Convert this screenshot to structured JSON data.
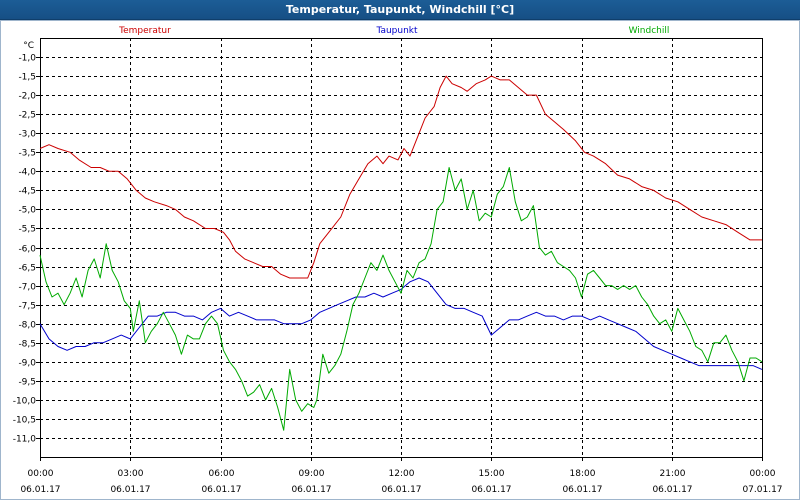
{
  "window": {
    "title": "Temperatur, Taupunkt, Windchill [°C]"
  },
  "chart_data": {
    "type": "line",
    "title": "Temperatur, Taupunkt, Windchill [°C]",
    "ylabel": "°C",
    "ylim": [
      -11.5,
      -0.5
    ],
    "xlim_hours": [
      0,
      24
    ],
    "y_ticks": [
      -1.0,
      -1.5,
      -2.0,
      -2.5,
      -3.0,
      -3.5,
      -4.0,
      -4.5,
      -5.0,
      -5.5,
      -6.0,
      -6.5,
      -7.0,
      -7.5,
      -8.0,
      -8.5,
      -9.0,
      -9.5,
      -10.0,
      -10.5,
      -11.0
    ],
    "y_tick_labels": [
      "-1,0",
      "-1,5",
      "-2,0",
      "-2,5",
      "-3,0",
      "-3,5",
      "-4,0",
      "-4,5",
      "-5,0",
      "-5,5",
      "-6,0",
      "-6,5",
      "-7,0",
      "-7,5",
      "-8,0",
      "-8,5",
      "-9,0",
      "-9,5",
      "-10,0",
      "-10,5",
      "-11,0"
    ],
    "x_ticks": [
      {
        "hour": 0,
        "time": "00:00",
        "date": "06.01.17"
      },
      {
        "hour": 3,
        "time": "03:00",
        "date": "06.01.17"
      },
      {
        "hour": 6,
        "time": "06:00",
        "date": "06.01.17"
      },
      {
        "hour": 9,
        "time": "09:00",
        "date": "06.01.17"
      },
      {
        "hour": 12,
        "time": "12:00",
        "date": "06.01.17"
      },
      {
        "hour": 15,
        "time": "15:00",
        "date": "06.01.17"
      },
      {
        "hour": 18,
        "time": "18:00",
        "date": "06.01.17"
      },
      {
        "hour": 21,
        "time": "21:00",
        "date": "06.01.17"
      },
      {
        "hour": 24,
        "time": "00:00",
        "date": "07.01.17"
      }
    ],
    "grid": true,
    "series": [
      {
        "name": "Temperatur",
        "color": "#cc0000",
        "legend_position": "top-left",
        "points": [
          [
            0.0,
            -3.4
          ],
          [
            0.3,
            -3.3
          ],
          [
            0.6,
            -3.4
          ],
          [
            1.0,
            -3.5
          ],
          [
            1.3,
            -3.7
          ],
          [
            1.7,
            -3.9
          ],
          [
            2.0,
            -3.9
          ],
          [
            2.3,
            -4.0
          ],
          [
            2.6,
            -4.0
          ],
          [
            2.9,
            -4.2
          ],
          [
            3.2,
            -4.5
          ],
          [
            3.5,
            -4.7
          ],
          [
            3.8,
            -4.8
          ],
          [
            4.2,
            -4.9
          ],
          [
            4.5,
            -5.0
          ],
          [
            4.8,
            -5.2
          ],
          [
            5.1,
            -5.3
          ],
          [
            5.5,
            -5.5
          ],
          [
            5.8,
            -5.5
          ],
          [
            6.1,
            -5.6
          ],
          [
            6.3,
            -5.8
          ],
          [
            6.5,
            -6.1
          ],
          [
            6.8,
            -6.3
          ],
          [
            7.1,
            -6.4
          ],
          [
            7.4,
            -6.5
          ],
          [
            7.7,
            -6.5
          ],
          [
            8.0,
            -6.7
          ],
          [
            8.3,
            -6.8
          ],
          [
            8.6,
            -6.8
          ],
          [
            8.9,
            -6.8
          ],
          [
            9.1,
            -6.4
          ],
          [
            9.3,
            -5.9
          ],
          [
            9.6,
            -5.6
          ],
          [
            10.0,
            -5.2
          ],
          [
            10.3,
            -4.6
          ],
          [
            10.6,
            -4.2
          ],
          [
            10.9,
            -3.8
          ],
          [
            11.2,
            -3.6
          ],
          [
            11.4,
            -3.8
          ],
          [
            11.6,
            -3.6
          ],
          [
            11.9,
            -3.7
          ],
          [
            12.1,
            -3.4
          ],
          [
            12.3,
            -3.6
          ],
          [
            12.6,
            -3.0
          ],
          [
            12.8,
            -2.6
          ],
          [
            13.1,
            -2.3
          ],
          [
            13.3,
            -1.8
          ],
          [
            13.5,
            -1.5
          ],
          [
            13.7,
            -1.7
          ],
          [
            14.0,
            -1.8
          ],
          [
            14.2,
            -1.9
          ],
          [
            14.5,
            -1.7
          ],
          [
            14.8,
            -1.6
          ],
          [
            15.0,
            -1.5
          ],
          [
            15.3,
            -1.6
          ],
          [
            15.6,
            -1.6
          ],
          [
            15.9,
            -1.8
          ],
          [
            16.2,
            -2.0
          ],
          [
            16.5,
            -2.0
          ],
          [
            16.8,
            -2.5
          ],
          [
            17.1,
            -2.7
          ],
          [
            17.4,
            -2.9
          ],
          [
            17.8,
            -3.2
          ],
          [
            18.1,
            -3.5
          ],
          [
            18.4,
            -3.6
          ],
          [
            18.8,
            -3.8
          ],
          [
            19.2,
            -4.1
          ],
          [
            19.6,
            -4.2
          ],
          [
            20.0,
            -4.4
          ],
          [
            20.4,
            -4.5
          ],
          [
            20.8,
            -4.7
          ],
          [
            21.2,
            -4.8
          ],
          [
            21.6,
            -5.0
          ],
          [
            22.0,
            -5.2
          ],
          [
            22.4,
            -5.3
          ],
          [
            22.8,
            -5.4
          ],
          [
            23.2,
            -5.6
          ],
          [
            23.6,
            -5.8
          ],
          [
            24.0,
            -5.8
          ]
        ]
      },
      {
        "name": "Taupunkt",
        "color": "#0000cc",
        "legend_position": "top-center",
        "points": [
          [
            0.0,
            -8.0
          ],
          [
            0.3,
            -8.4
          ],
          [
            0.6,
            -8.6
          ],
          [
            0.9,
            -8.7
          ],
          [
            1.2,
            -8.6
          ],
          [
            1.5,
            -8.6
          ],
          [
            1.8,
            -8.5
          ],
          [
            2.1,
            -8.5
          ],
          [
            2.4,
            -8.4
          ],
          [
            2.7,
            -8.3
          ],
          [
            3.0,
            -8.4
          ],
          [
            3.3,
            -8.1
          ],
          [
            3.6,
            -7.8
          ],
          [
            3.9,
            -7.8
          ],
          [
            4.2,
            -7.7
          ],
          [
            4.5,
            -7.7
          ],
          [
            4.8,
            -7.8
          ],
          [
            5.1,
            -7.8
          ],
          [
            5.4,
            -7.9
          ],
          [
            5.7,
            -7.7
          ],
          [
            6.0,
            -7.6
          ],
          [
            6.3,
            -7.8
          ],
          [
            6.6,
            -7.7
          ],
          [
            6.9,
            -7.8
          ],
          [
            7.2,
            -7.9
          ],
          [
            7.5,
            -7.9
          ],
          [
            7.8,
            -7.9
          ],
          [
            8.1,
            -8.0
          ],
          [
            8.4,
            -8.0
          ],
          [
            8.7,
            -8.0
          ],
          [
            9.0,
            -7.9
          ],
          [
            9.3,
            -7.7
          ],
          [
            9.6,
            -7.6
          ],
          [
            9.9,
            -7.5
          ],
          [
            10.2,
            -7.4
          ],
          [
            10.5,
            -7.3
          ],
          [
            10.8,
            -7.3
          ],
          [
            11.1,
            -7.2
          ],
          [
            11.4,
            -7.3
          ],
          [
            11.7,
            -7.2
          ],
          [
            12.0,
            -7.1
          ],
          [
            12.3,
            -6.9
          ],
          [
            12.6,
            -6.8
          ],
          [
            12.9,
            -6.9
          ],
          [
            13.2,
            -7.2
          ],
          [
            13.5,
            -7.5
          ],
          [
            13.8,
            -7.6
          ],
          [
            14.1,
            -7.6
          ],
          [
            14.4,
            -7.7
          ],
          [
            14.7,
            -7.8
          ],
          [
            15.0,
            -8.3
          ],
          [
            15.3,
            -8.1
          ],
          [
            15.6,
            -7.9
          ],
          [
            15.9,
            -7.9
          ],
          [
            16.2,
            -7.8
          ],
          [
            16.5,
            -7.7
          ],
          [
            16.8,
            -7.8
          ],
          [
            17.1,
            -7.8
          ],
          [
            17.4,
            -7.9
          ],
          [
            17.7,
            -7.8
          ],
          [
            18.0,
            -7.8
          ],
          [
            18.3,
            -7.9
          ],
          [
            18.6,
            -7.8
          ],
          [
            18.9,
            -7.9
          ],
          [
            19.2,
            -8.0
          ],
          [
            19.5,
            -8.1
          ],
          [
            19.8,
            -8.2
          ],
          [
            20.1,
            -8.4
          ],
          [
            20.4,
            -8.6
          ],
          [
            20.7,
            -8.7
          ],
          [
            21.0,
            -8.8
          ],
          [
            21.3,
            -8.9
          ],
          [
            21.6,
            -9.0
          ],
          [
            21.9,
            -9.1
          ],
          [
            22.2,
            -9.1
          ],
          [
            22.5,
            -9.1
          ],
          [
            22.8,
            -9.1
          ],
          [
            23.1,
            -9.1
          ],
          [
            23.4,
            -9.1
          ],
          [
            23.7,
            -9.1
          ],
          [
            24.0,
            -9.2
          ]
        ]
      },
      {
        "name": "Windchill",
        "color": "#00aa00",
        "legend_position": "top-right",
        "points": [
          [
            0.0,
            -6.2
          ],
          [
            0.2,
            -6.9
          ],
          [
            0.4,
            -7.3
          ],
          [
            0.6,
            -7.2
          ],
          [
            0.8,
            -7.5
          ],
          [
            1.0,
            -7.2
          ],
          [
            1.2,
            -6.8
          ],
          [
            1.4,
            -7.3
          ],
          [
            1.6,
            -6.6
          ],
          [
            1.8,
            -6.3
          ],
          [
            2.0,
            -6.8
          ],
          [
            2.2,
            -5.9
          ],
          [
            2.4,
            -6.6
          ],
          [
            2.6,
            -6.9
          ],
          [
            2.8,
            -7.4
          ],
          [
            3.0,
            -7.6
          ],
          [
            3.1,
            -8.2
          ],
          [
            3.3,
            -7.4
          ],
          [
            3.5,
            -8.5
          ],
          [
            3.7,
            -8.2
          ],
          [
            3.9,
            -8.0
          ],
          [
            4.1,
            -7.7
          ],
          [
            4.3,
            -8.0
          ],
          [
            4.5,
            -8.3
          ],
          [
            4.7,
            -8.8
          ],
          [
            4.9,
            -8.3
          ],
          [
            5.1,
            -8.4
          ],
          [
            5.3,
            -8.4
          ],
          [
            5.5,
            -8.0
          ],
          [
            5.7,
            -7.8
          ],
          [
            5.9,
            -8.0
          ],
          [
            6.1,
            -8.7
          ],
          [
            6.3,
            -9.0
          ],
          [
            6.5,
            -9.2
          ],
          [
            6.7,
            -9.5
          ],
          [
            6.9,
            -9.9
          ],
          [
            7.1,
            -9.8
          ],
          [
            7.3,
            -9.6
          ],
          [
            7.5,
            -10.0
          ],
          [
            7.7,
            -9.7
          ],
          [
            7.9,
            -10.2
          ],
          [
            8.1,
            -10.8
          ],
          [
            8.3,
            -9.2
          ],
          [
            8.5,
            -10.0
          ],
          [
            8.7,
            -10.3
          ],
          [
            8.9,
            -10.1
          ],
          [
            9.1,
            -10.2
          ],
          [
            9.2,
            -10.0
          ],
          [
            9.4,
            -8.8
          ],
          [
            9.6,
            -9.3
          ],
          [
            9.8,
            -9.1
          ],
          [
            10.0,
            -8.8
          ],
          [
            10.2,
            -8.2
          ],
          [
            10.4,
            -7.5
          ],
          [
            10.6,
            -7.2
          ],
          [
            10.8,
            -6.8
          ],
          [
            11.0,
            -6.4
          ],
          [
            11.2,
            -6.6
          ],
          [
            11.4,
            -6.2
          ],
          [
            11.6,
            -6.6
          ],
          [
            11.8,
            -6.9
          ],
          [
            12.0,
            -7.2
          ],
          [
            12.2,
            -6.6
          ],
          [
            12.4,
            -6.8
          ],
          [
            12.6,
            -6.4
          ],
          [
            12.8,
            -6.3
          ],
          [
            13.0,
            -5.9
          ],
          [
            13.2,
            -5.0
          ],
          [
            13.4,
            -4.8
          ],
          [
            13.6,
            -3.9
          ],
          [
            13.8,
            -4.5
          ],
          [
            14.0,
            -4.2
          ],
          [
            14.2,
            -5.0
          ],
          [
            14.4,
            -4.5
          ],
          [
            14.6,
            -5.3
          ],
          [
            14.8,
            -5.1
          ],
          [
            15.0,
            -5.2
          ],
          [
            15.2,
            -4.6
          ],
          [
            15.4,
            -4.4
          ],
          [
            15.6,
            -3.9
          ],
          [
            15.8,
            -4.8
          ],
          [
            16.0,
            -5.3
          ],
          [
            16.2,
            -5.2
          ],
          [
            16.4,
            -4.9
          ],
          [
            16.6,
            -6.0
          ],
          [
            16.8,
            -6.2
          ],
          [
            17.0,
            -6.1
          ],
          [
            17.2,
            -6.4
          ],
          [
            17.4,
            -6.5
          ],
          [
            17.6,
            -6.6
          ],
          [
            17.8,
            -6.8
          ],
          [
            18.0,
            -7.3
          ],
          [
            18.2,
            -6.7
          ],
          [
            18.4,
            -6.6
          ],
          [
            18.6,
            -6.8
          ],
          [
            18.8,
            -7.0
          ],
          [
            19.0,
            -7.0
          ],
          [
            19.2,
            -7.1
          ],
          [
            19.4,
            -7.0
          ],
          [
            19.6,
            -7.1
          ],
          [
            19.8,
            -7.0
          ],
          [
            20.0,
            -7.3
          ],
          [
            20.2,
            -7.5
          ],
          [
            20.4,
            -7.8
          ],
          [
            20.6,
            -8.0
          ],
          [
            20.8,
            -7.9
          ],
          [
            21.0,
            -8.2
          ],
          [
            21.2,
            -7.6
          ],
          [
            21.4,
            -7.9
          ],
          [
            21.6,
            -8.2
          ],
          [
            21.8,
            -8.6
          ],
          [
            22.0,
            -8.7
          ],
          [
            22.2,
            -9.0
          ],
          [
            22.4,
            -8.5
          ],
          [
            22.6,
            -8.5
          ],
          [
            22.8,
            -8.3
          ],
          [
            23.0,
            -8.7
          ],
          [
            23.2,
            -9.0
          ],
          [
            23.4,
            -9.5
          ],
          [
            23.6,
            -8.9
          ],
          [
            23.8,
            -8.9
          ],
          [
            24.0,
            -9.0
          ]
        ]
      }
    ]
  }
}
